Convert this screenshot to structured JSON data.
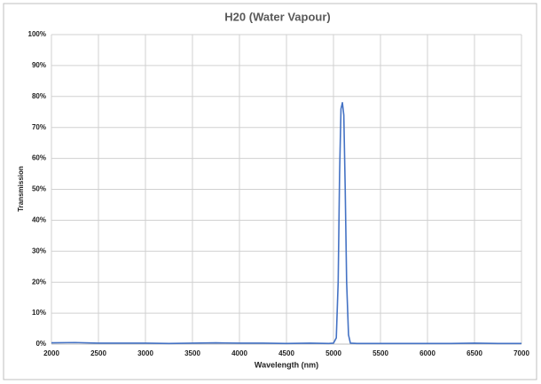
{
  "chart_data": {
    "type": "line",
    "title": "H20 (Water Vapour)",
    "x_label": "Wavelength (nm)",
    "y_label": "Transmission",
    "x": [
      2000,
      2250,
      2500,
      2750,
      3000,
      3250,
      3500,
      3750,
      4000,
      4250,
      4500,
      4750,
      4950,
      5000,
      5030,
      5050,
      5065,
      5080,
      5095,
      5110,
      5125,
      5140,
      5160,
      5180,
      5250,
      5500,
      5750,
      6000,
      6250,
      6500,
      6750,
      7000
    ],
    "values": [
      0.4,
      0.5,
      0.3,
      0.3,
      0.3,
      0.2,
      0.3,
      0.4,
      0.3,
      0.3,
      0.2,
      0.3,
      0.2,
      0.3,
      2,
      20,
      55,
      76,
      78,
      74,
      50,
      20,
      3,
      0.3,
      0.2,
      0.2,
      0.2,
      0.2,
      0.2,
      0.3,
      0.2,
      0.2
    ],
    "color": "#4472c4",
    "xlim": [
      2000,
      7000
    ],
    "xticks": [
      2000,
      2500,
      3000,
      3500,
      4000,
      4500,
      5000,
      5500,
      6000,
      6500,
      7000
    ],
    "ylim": [
      0,
      100
    ],
    "yticks": [
      {
        "value": 0,
        "label": "0%"
      },
      {
        "value": 10,
        "label": "10%"
      },
      {
        "value": 20,
        "label": "20%"
      },
      {
        "value": 30,
        "label": "30%"
      },
      {
        "value": 40,
        "label": "40%"
      },
      {
        "value": 50,
        "label": "50%"
      },
      {
        "value": 60,
        "label": "60%"
      },
      {
        "value": 70,
        "label": "70%"
      },
      {
        "value": 80,
        "label": "80%"
      },
      {
        "value": 90,
        "label": "90%"
      },
      {
        "value": 100,
        "label": "100%"
      }
    ],
    "grid": true
  }
}
